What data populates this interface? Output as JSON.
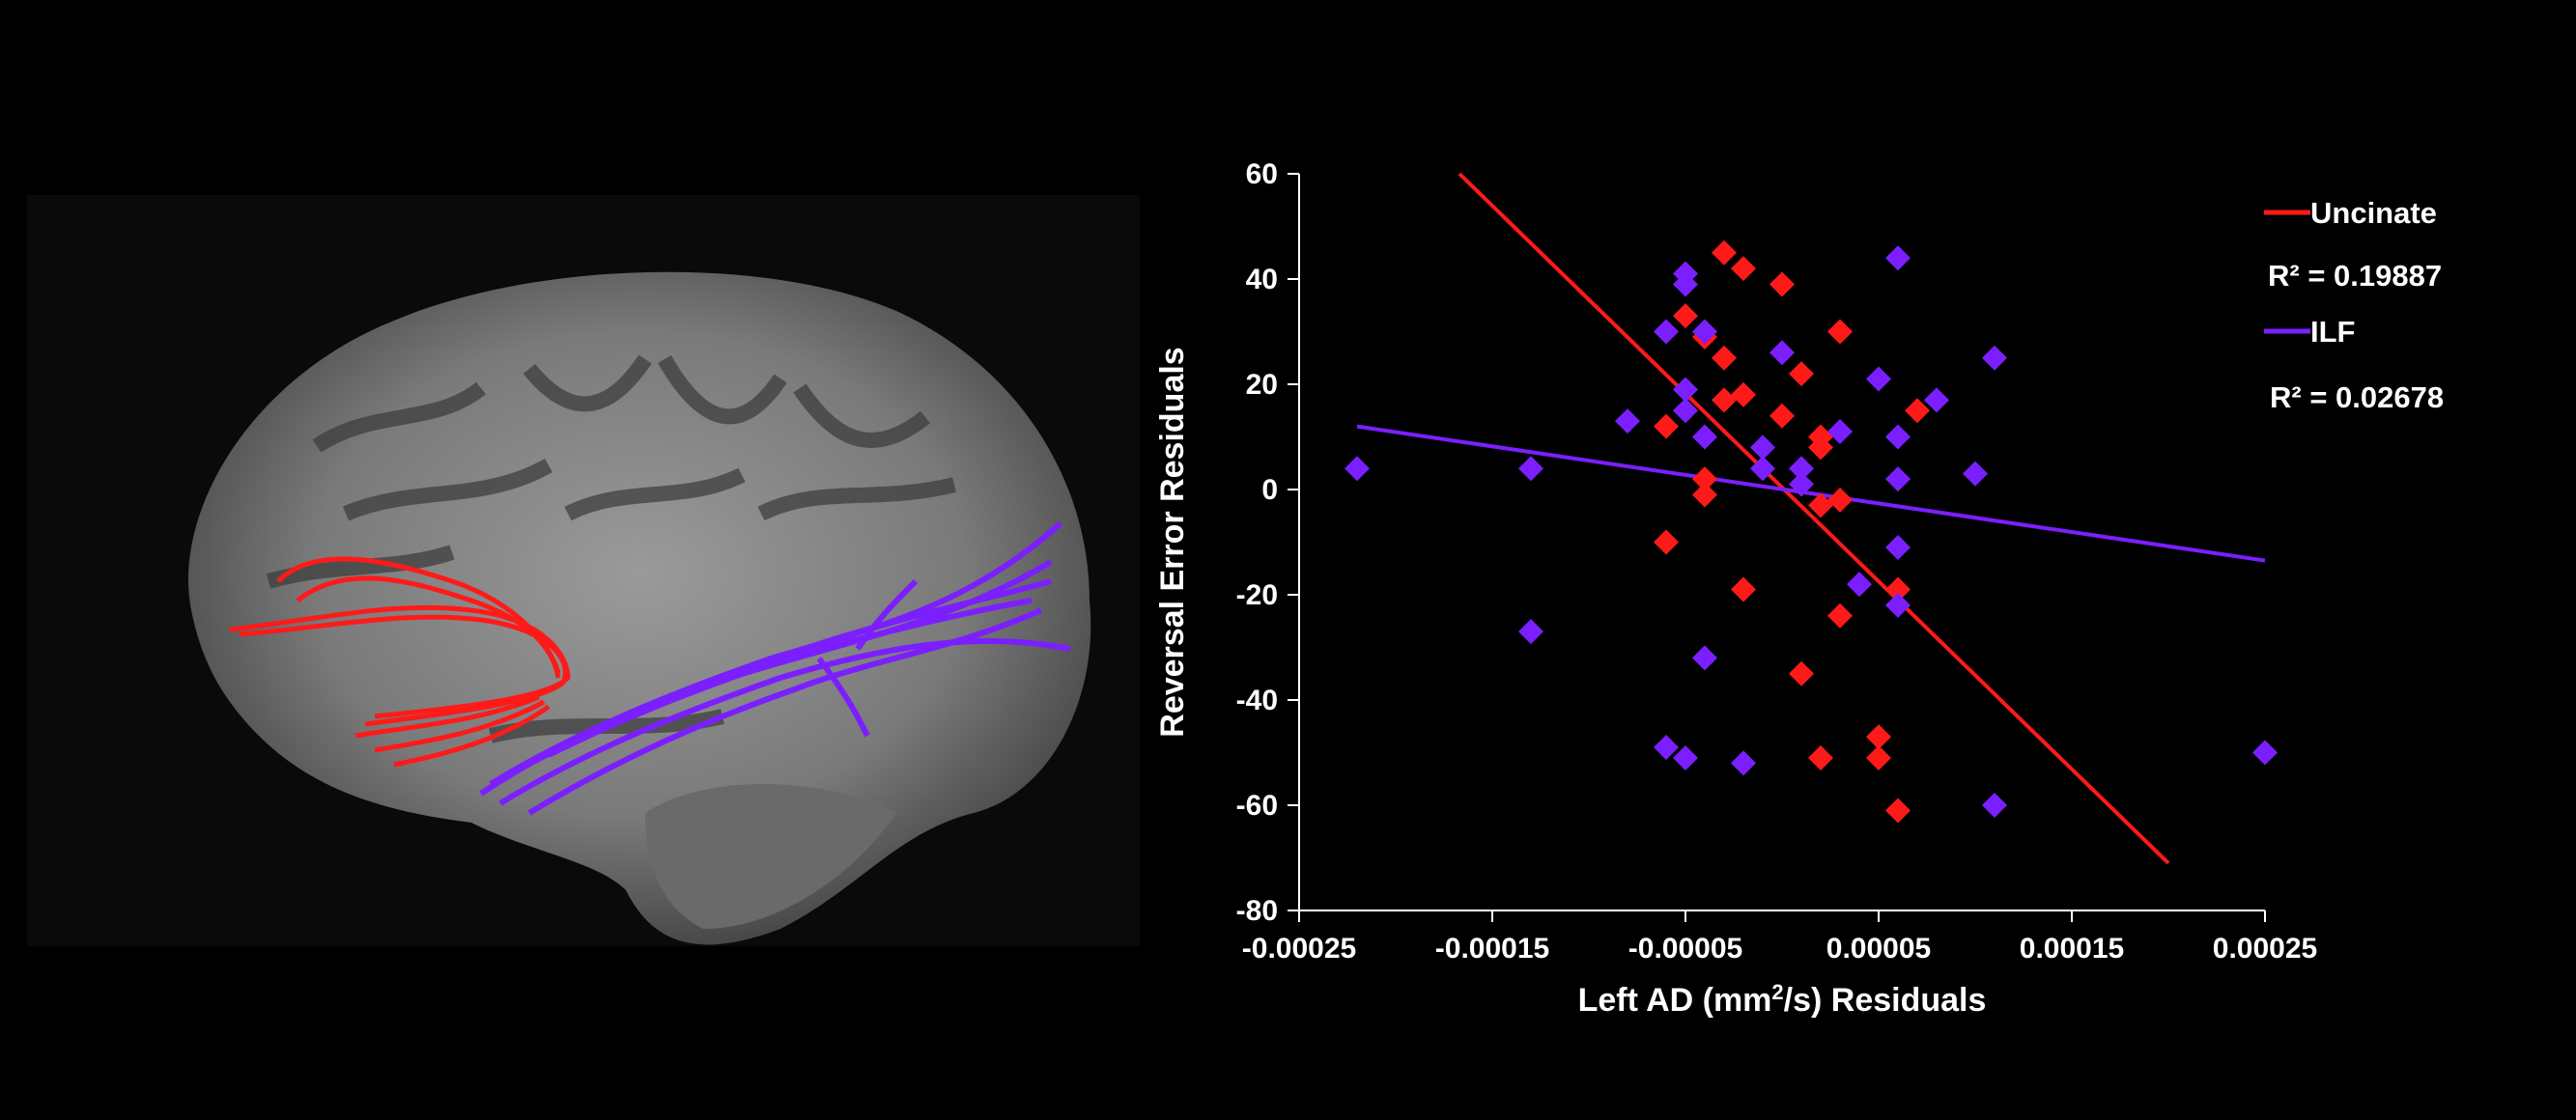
{
  "chart_data": {
    "type": "scatter",
    "xlabel_main": "Left AD (mm",
    "xlabel_sup": "2",
    "xlabel_tail": "/s) Residuals",
    "ylabel": "Reversal Error Residuals",
    "xlim": [
      -0.00025,
      0.00025
    ],
    "ylim": [
      -80,
      60
    ],
    "xticks": [
      "-0.00025",
      "-0.00015",
      "-0.00005",
      "0.00005",
      "0.00015",
      "0.00025"
    ],
    "xtick_values": [
      -0.00025,
      -0.00015,
      -5e-05,
      5e-05,
      0.00015,
      0.00025
    ],
    "yticks": [
      "60",
      "40",
      "20",
      "0",
      "-20",
      "-40",
      "-60",
      "-80"
    ],
    "ytick_values": [
      60,
      40,
      20,
      0,
      -20,
      -40,
      -60,
      -80
    ],
    "grid": false,
    "legend_position": "top-right",
    "series": [
      {
        "name": "Uncinate",
        "color": "#ff1a1a",
        "r2": "R² = 0.19887",
        "trendline": [
          [
            -0.000167,
            60
          ],
          [
            0.0002,
            -71
          ]
        ],
        "points": [
          [
            -3e-05,
            45
          ],
          [
            -2e-05,
            42
          ],
          [
            0.0,
            39
          ],
          [
            -5e-05,
            33
          ],
          [
            -4e-05,
            29
          ],
          [
            3e-05,
            30
          ],
          [
            -3e-05,
            25
          ],
          [
            1e-05,
            22
          ],
          [
            -3e-05,
            17
          ],
          [
            -2e-05,
            18
          ],
          [
            7e-05,
            15
          ],
          [
            0.0,
            14
          ],
          [
            -6e-05,
            12
          ],
          [
            2e-05,
            10
          ],
          [
            2e-05,
            8
          ],
          [
            -4e-05,
            2
          ],
          [
            -4e-05,
            -1
          ],
          [
            3e-05,
            -2
          ],
          [
            2e-05,
            -3
          ],
          [
            -6e-05,
            -10
          ],
          [
            -2e-05,
            -19
          ],
          [
            6e-05,
            -19
          ],
          [
            3e-05,
            -24
          ],
          [
            1e-05,
            -35
          ],
          [
            5e-05,
            -47
          ],
          [
            5e-05,
            -51
          ],
          [
            2e-05,
            -51
          ],
          [
            6e-05,
            -61
          ]
        ]
      },
      {
        "name": "ILF",
        "color": "#7b1fff",
        "r2": "R² = 0.02678",
        "trendline": [
          [
            -0.00022,
            12
          ],
          [
            0.00025,
            -13.5
          ]
        ],
        "points": [
          [
            6e-05,
            44
          ],
          [
            -5e-05,
            41
          ],
          [
            -5e-05,
            39
          ],
          [
            -6e-05,
            30
          ],
          [
            -4e-05,
            30
          ],
          [
            0.0,
            26
          ],
          [
            0.00011,
            25
          ],
          [
            5e-05,
            21
          ],
          [
            -5e-05,
            19
          ],
          [
            8e-05,
            17
          ],
          [
            -5e-05,
            15
          ],
          [
            -8e-05,
            13
          ],
          [
            3e-05,
            11
          ],
          [
            -4e-05,
            10
          ],
          [
            6e-05,
            10
          ],
          [
            -1e-05,
            8
          ],
          [
            -1e-05,
            4
          ],
          [
            1e-05,
            4
          ],
          [
            -0.00022,
            4
          ],
          [
            -0.00013,
            4
          ],
          [
            0.0001,
            3
          ],
          [
            6e-05,
            2
          ],
          [
            1e-05,
            1
          ],
          [
            6e-05,
            -11
          ],
          [
            4e-05,
            -18
          ],
          [
            6e-05,
            -22
          ],
          [
            -0.00013,
            -27
          ],
          [
            -4e-05,
            -32
          ],
          [
            -6e-05,
            -49
          ],
          [
            -5e-05,
            -51
          ],
          [
            -2e-05,
            -52
          ],
          [
            0.00025,
            -50
          ],
          [
            0.00011,
            -60
          ]
        ]
      }
    ]
  }
}
